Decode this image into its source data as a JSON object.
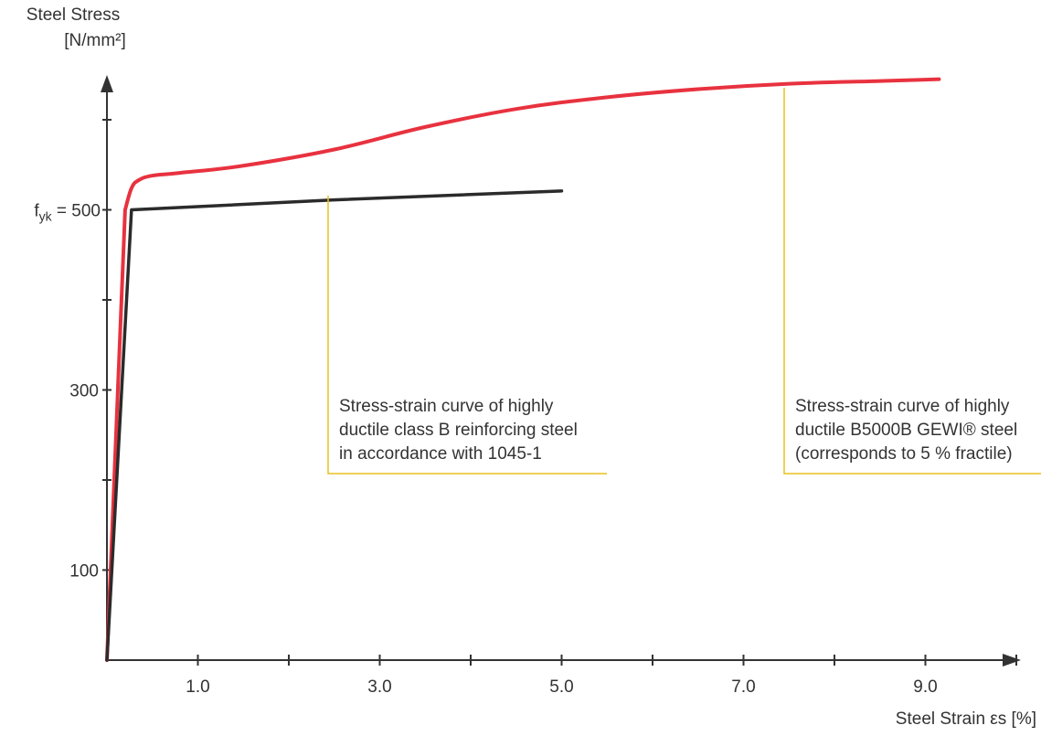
{
  "chart_data": {
    "type": "line",
    "y_axis": {
      "label_line1": "Steel Stress",
      "label_line2": "[N/mm²]",
      "ticks": [
        100,
        200,
        300,
        400,
        500,
        600
      ],
      "tick_labels": [
        {
          "value": 100,
          "text": "100"
        },
        {
          "value": 300,
          "text": "300"
        },
        {
          "value": 500,
          "text": "f_yk = 500"
        }
      ],
      "range": [
        0,
        660
      ]
    },
    "x_axis": {
      "label": "Steel Strain εs [%]",
      "ticks": [
        1,
        2,
        3,
        4,
        5,
        6,
        7,
        8,
        9,
        10
      ],
      "tick_labels": [
        {
          "value": 1,
          "text": "1.0"
        },
        {
          "value": 3,
          "text": "3.0"
        },
        {
          "value": 5,
          "text": "5.0"
        },
        {
          "value": 7,
          "text": "7.0"
        },
        {
          "value": 9,
          "text": "9.0"
        }
      ],
      "range": [
        0,
        10
      ]
    },
    "series": [
      {
        "color": "#e8323f",
        "x": [
          0,
          0.2,
          0.27,
          0.35,
          0.5,
          0.8,
          1.5,
          2.5,
          3.5,
          4.5,
          5.5,
          6.5,
          7.5,
          8.5,
          9.15
        ],
        "y": [
          0,
          500,
          524,
          533,
          538,
          541,
          549,
          567,
          592,
          612,
          625,
          634,
          640,
          643,
          645
        ]
      },
      {
        "color": "#2b2b2b",
        "x": [
          0,
          0.27,
          2.5,
          5.0
        ],
        "y": [
          0,
          500,
          511,
          521
        ]
      }
    ],
    "annotations": [
      {
        "lines": [
          "Stress-strain curve of highly",
          "ductile class B reinforcing steel",
          "in accordance with 1045-1"
        ],
        "pointer_color": "#e8c21e"
      },
      {
        "lines": [
          "Stress-strain curve of highly",
          "ductile B5000B GEWI® steel",
          "(corresponds to 5 % fractile)"
        ],
        "pointer_color": "#e8c21e"
      }
    ]
  }
}
